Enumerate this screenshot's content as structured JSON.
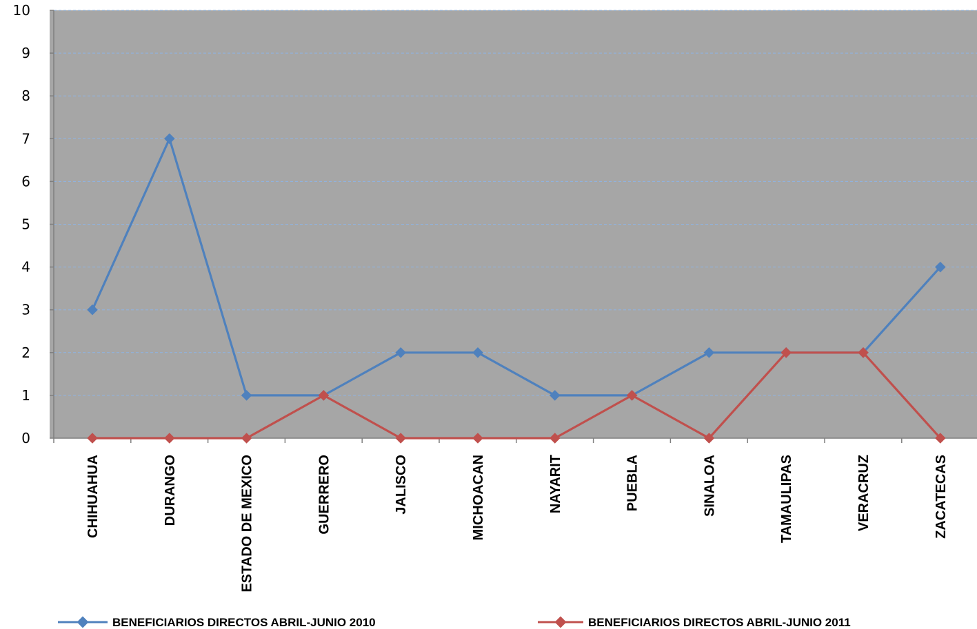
{
  "chart_data": {
    "type": "line",
    "title": "",
    "xlabel": "",
    "ylabel": "",
    "ylim": [
      0,
      10
    ],
    "yticks": [
      0,
      1,
      2,
      3,
      4,
      5,
      6,
      7,
      8,
      9,
      10
    ],
    "grid": true,
    "legend_position": "bottom",
    "plot_background": "#a6a6a6",
    "categories": [
      "CHIHUAHUA",
      "DURANGO",
      "ESTADO DE MEXICO",
      "GUERRERO",
      "JALISCO",
      "MICHOACAN",
      "NAYARIT",
      "PUEBLA",
      "SINALOA",
      "TAMAULIPAS",
      "VERACRUZ",
      "ZACATECAS"
    ],
    "series": [
      {
        "name": "BENEFICIARIOS DIRECTOS ABRIL-JUNIO 2010",
        "color": "#4f81bd",
        "values": [
          3,
          7,
          1,
          1,
          2,
          2,
          1,
          1,
          2,
          2,
          2,
          4
        ]
      },
      {
        "name": "BENEFICIARIOS DIRECTOS ABRIL-JUNIO 2011",
        "color": "#c0504d",
        "values": [
          0,
          0,
          0,
          1,
          0,
          0,
          0,
          1,
          0,
          2,
          2,
          0
        ]
      }
    ]
  }
}
